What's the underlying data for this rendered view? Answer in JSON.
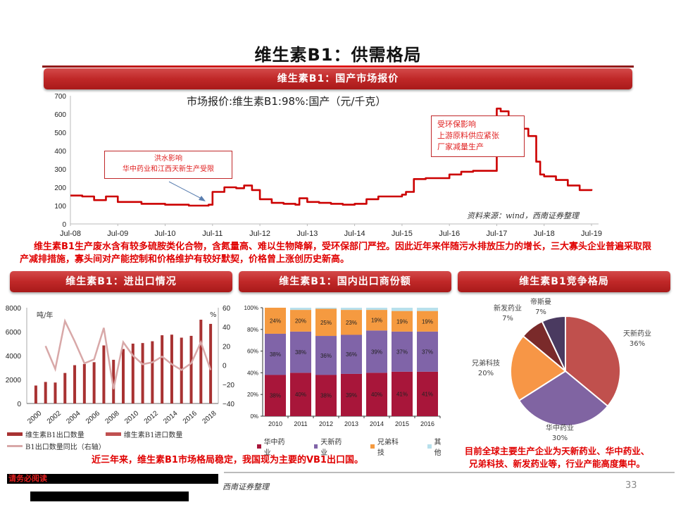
{
  "page": {
    "title": "维生素B1：供需格局",
    "page_number": "33",
    "footer_source": "西南证券整理",
    "footer_redacted_label": "请务必阅读"
  },
  "banners": {
    "main": "维生素B1：国产市场报价",
    "import_export": "维生素B1：进出口情况",
    "exporter_share": "维生素B1：国内出口商份额",
    "competition": "维生素B1竞争格局"
  },
  "price_chart": {
    "series_title": "市场报价:维生素B1:98%:国产（元/千克）",
    "source": "资料来源：wind，西南证券整理",
    "annotations": [
      {
        "lines": [
          "洪水影响",
          "华中药业和江西天新生产受限"
        ]
      },
      {
        "lines": [
          "受环保影响",
          "上游原料供应紧张",
          "厂家减量生产"
        ]
      }
    ]
  },
  "commentary": {
    "price": "维生素B1生产废水含有较多硫胺类化合物，含氮量高、难以生物降解，受环保部门严控。因此近年来伴随污水排放压力的增长，三大寡头企业普遍采取限产减排措施，寡头间对产能控制和价格维护有较好默契，价格曾上涨创历史新高。",
    "export": "近三年来，维生素B1市场格局稳定，我国现为主要的VB1出口国。",
    "competition_line1": "目前全球主要生产企业为天新药业、华中药业、",
    "competition_line2": "兄弟科技、新发药业等，行业产能高度集中。"
  },
  "import_export_chart": {
    "left_unit": "吨/年",
    "right_unit": "%",
    "legend": {
      "export": "维生素B1出口数量",
      "import": "维生素B1进口数量",
      "yoy": "B1出口数量同比（右轴）"
    }
  },
  "share_chart": {
    "legend": [
      "华中药业",
      "天新药业",
      "兄弟科技",
      "其他"
    ]
  },
  "pie_chart": {
    "labels": [
      {
        "name": "天新药业",
        "pct": "36%"
      },
      {
        "name": "华中药业",
        "pct": "30%"
      },
      {
        "name": "兄弟科技",
        "pct": "20%"
      },
      {
        "name": "新发药业",
        "pct": "7%"
      },
      {
        "name": "帝斯曼",
        "pct": "7%"
      }
    ]
  },
  "chart_data": [
    {
      "type": "line",
      "title": "市场报价:维生素B1:98%:国产（元/千克）",
      "xlabel": "",
      "ylabel": "元/千克",
      "x_ticks": [
        "Jul-08",
        "Jul-09",
        "Jul-10",
        "Jul-11",
        "Jul-12",
        "Jul-13",
        "Jul-14",
        "Jul-15",
        "Jul-16",
        "Jul-17",
        "Jul-18",
        "Jul-19"
      ],
      "y_ticks": [
        0,
        100,
        200,
        300,
        400,
        500,
        600,
        700
      ],
      "ylim": [
        0,
        700
      ],
      "series": [
        {
          "name": "维生素B1:98%:国产",
          "color": "#cc0000",
          "x": [
            "Jul-08",
            "Oct-08",
            "Jan-09",
            "Apr-09",
            "Jul-09",
            "Oct-09",
            "Jan-10",
            "Jul-10",
            "Jan-11",
            "Apr-11",
            "Jun-11",
            "Jul-11",
            "Oct-11",
            "Jan-12",
            "Mar-12",
            "May-12",
            "Jul-12",
            "Oct-12",
            "Jan-13",
            "Apr-13",
            "May-13",
            "Jul-13",
            "Oct-13",
            "Jan-14",
            "Apr-14",
            "Jul-14",
            "Oct-14",
            "Jan-15",
            "Apr-15",
            "Jul-15",
            "Aug-15",
            "Oct-15",
            "Jan-16",
            "Apr-16",
            "Jul-16",
            "Aug-16",
            "Oct-16",
            "Jan-17",
            "Apr-17",
            "May-17",
            "Jun-17",
            "Jul-17",
            "Aug-17",
            "Oct-17",
            "Jan-18",
            "Mar-18",
            "May-18",
            "Jun-18",
            "Jul-18",
            "Oct-18",
            "Jan-19",
            "Apr-19",
            "Jul-19"
          ],
          "values": [
            155,
            150,
            130,
            150,
            120,
            120,
            110,
            105,
            100,
            100,
            105,
            175,
            200,
            195,
            210,
            185,
            135,
            115,
            110,
            105,
            140,
            120,
            115,
            110,
            105,
            110,
            135,
            150,
            150,
            160,
            175,
            245,
            250,
            250,
            270,
            270,
            285,
            290,
            290,
            290,
            290,
            630,
            615,
            540,
            520,
            480,
            340,
            270,
            260,
            240,
            210,
            185,
            190
          ]
        }
      ],
      "annotations": [
        "洪水影响 华中药业和江西天新生产受限 (arrow to ~Jun-11)",
        "受环保影响 上游原料供应紧张 厂家减量生产 (arrow to ~Jul-17)"
      ],
      "source": "资料来源：wind，西南证券整理",
      "grid": false
    },
    {
      "type": "bar",
      "title": "维生素B1：进出口情况",
      "categories": [
        "2000",
        "2001",
        "2002",
        "2003",
        "2004",
        "2005",
        "2006",
        "2007",
        "2008",
        "2009",
        "2010",
        "2011",
        "2012",
        "2013",
        "2014",
        "2015",
        "2016",
        "2017",
        "2018"
      ],
      "x_tick_labels": [
        "2000",
        "2002",
        "2004",
        "2006",
        "2008",
        "2010",
        "2012",
        "2014",
        "2016",
        "2018"
      ],
      "ylabel": "吨/年",
      "ylim": [
        0,
        8000
      ],
      "y_ticks": [
        0,
        2000,
        4000,
        6000,
        8000
      ],
      "y2label": "%",
      "y2lim": [
        -40,
        60
      ],
      "y2_ticks": [
        -40,
        -20,
        0,
        20,
        40,
        60
      ],
      "series": [
        {
          "name": "维生素B1出口数量",
          "type": "bar",
          "axis": "left",
          "color": "#a83232",
          "values": [
            1500,
            1800,
            1750,
            2550,
            3200,
            3300,
            3450,
            4850,
            3650,
            4550,
            5000,
            5050,
            5200,
            5700,
            5750,
            5500,
            5650,
            7000,
            6650
          ]
        },
        {
          "name": "维生素B1进口数量",
          "type": "bar",
          "axis": "left",
          "color": "#c05050",
          "values": [
            20,
            20,
            20,
            20,
            20,
            20,
            20,
            20,
            20,
            20,
            20,
            20,
            20,
            20,
            20,
            20,
            20,
            20,
            20
          ]
        },
        {
          "name": "B1出口数量同比（右轴）",
          "type": "line",
          "axis": "right",
          "color": "#d8a8a8",
          "values": [
            null,
            20,
            -4,
            46,
            25,
            2,
            6,
            39,
            -25,
            24,
            10,
            1,
            3,
            9,
            1,
            -5,
            2,
            24,
            -5
          ]
        }
      ],
      "legend_position": "bottom"
    },
    {
      "type": "bar",
      "stacked": true,
      "title": "维生素B1：国内出口商份额",
      "categories": [
        "2010",
        "2011",
        "2012",
        "2013",
        "2014",
        "2015",
        "2016"
      ],
      "ylim": [
        0,
        1
      ],
      "y_ticks": [
        "0%",
        "20%",
        "40%",
        "60%",
        "80%",
        "100%"
      ],
      "series": [
        {
          "name": "华中药业",
          "color": "#a8163a",
          "values": [
            38,
            40,
            38,
            39,
            40,
            41,
            41
          ]
        },
        {
          "name": "天新药业",
          "color": "#8064a8",
          "values": [
            38,
            38,
            36,
            36,
            39,
            37,
            37
          ]
        },
        {
          "name": "兄弟科技",
          "color": "#f59a40",
          "values": [
            24,
            20,
            25,
            23,
            19,
            19,
            19
          ]
        },
        {
          "name": "其他",
          "color": "#b8e0ec",
          "values": [
            0,
            2,
            1,
            2,
            2,
            3,
            3
          ]
        }
      ],
      "data_labels": true,
      "legend_position": "bottom"
    },
    {
      "type": "pie",
      "title": "维生素B1竞争格局",
      "categories": [
        "天新药业",
        "华中药业",
        "兄弟科技",
        "新发药业",
        "帝斯曼"
      ],
      "values": [
        36,
        30,
        20,
        7,
        7
      ],
      "colors": [
        "#c0504d",
        "#8064a2",
        "#f79646",
        "#7a2a2a",
        "#4a3a60"
      ]
    }
  ]
}
